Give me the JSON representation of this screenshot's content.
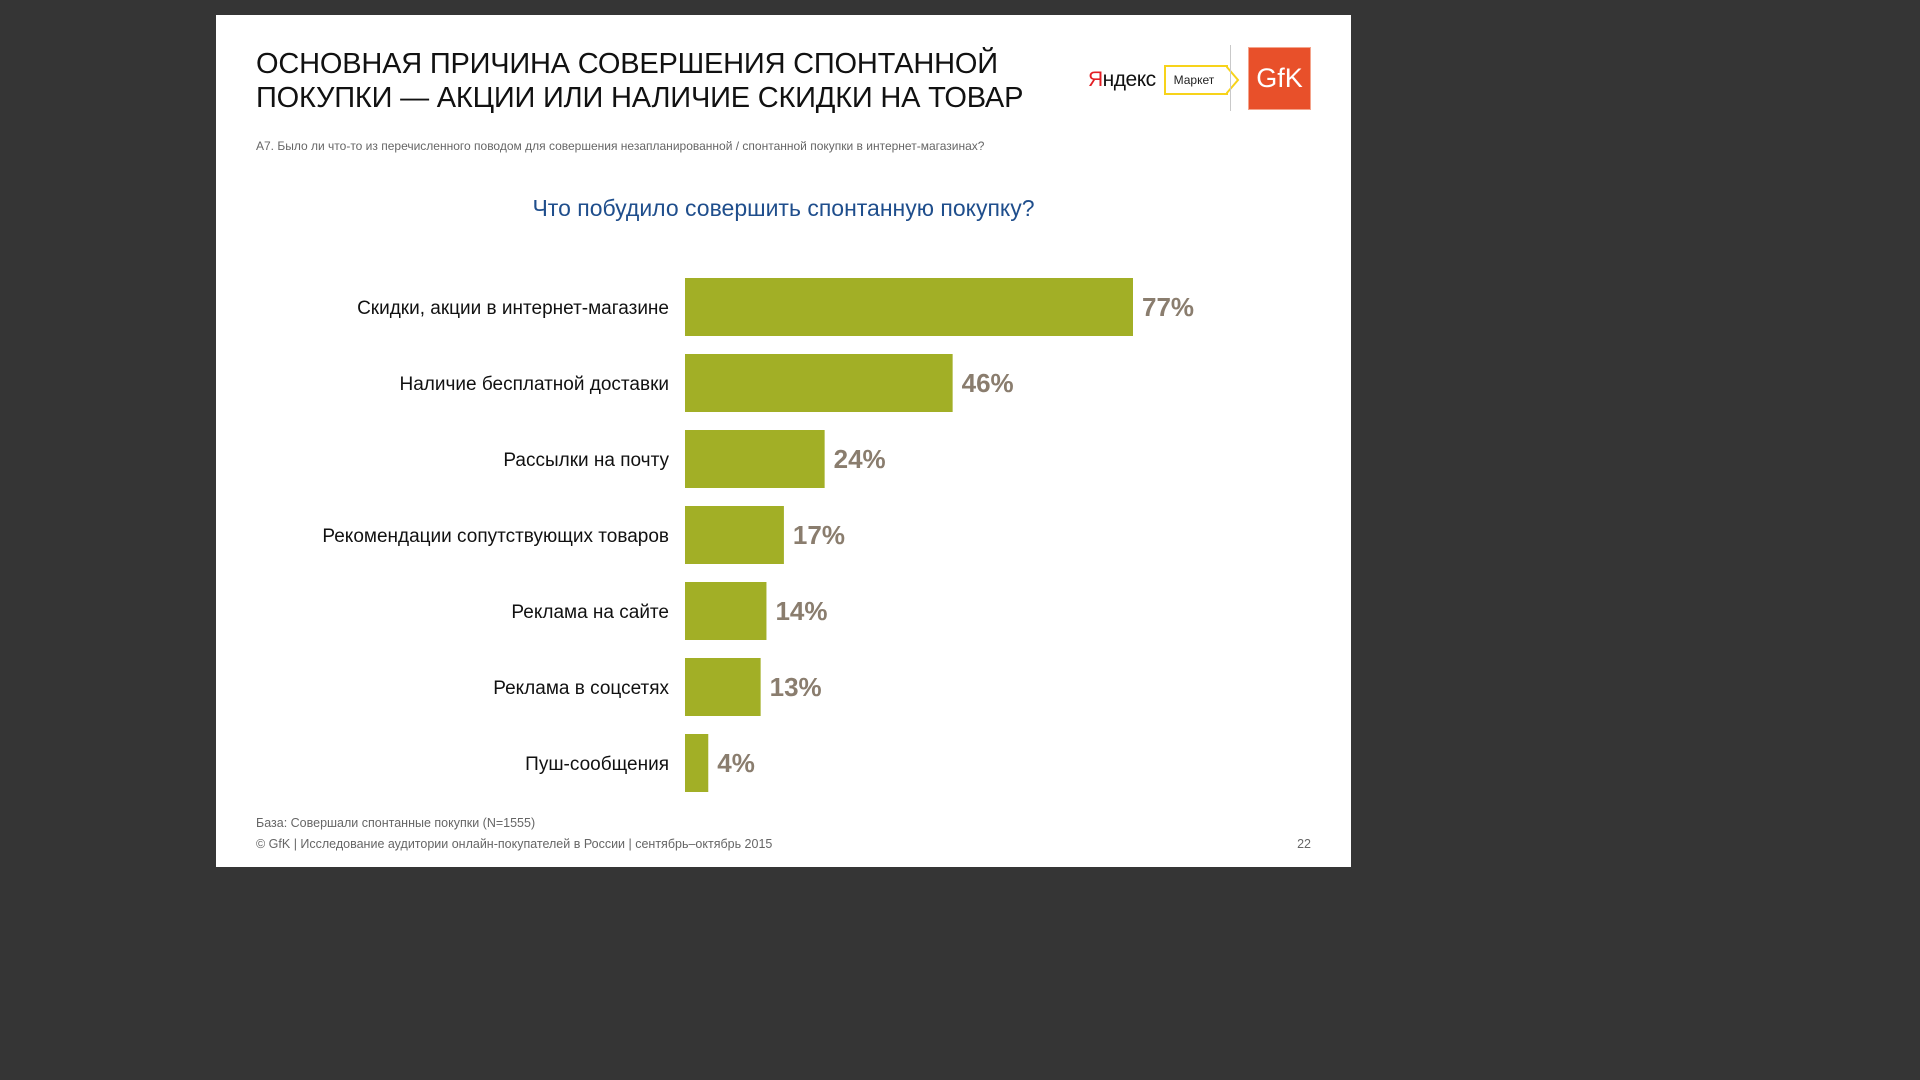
{
  "slide": {
    "title_lines": [
      "ОСНОВНАЯ ПРИЧИНА СОВЕРШЕНИЯ СПОНТАННОЙ",
      "ПОКУПКИ — АКЦИИ ИЛИ НАЛИЧИЕ СКИДКИ НА ТОВАР"
    ],
    "question": "А7. Было ли что-то из перечисленного поводом для совершения незапланированной / спонтанной покупки в интернет-магазинах?",
    "base_note": "База: Совершали спонтанные покупки (N=1555)",
    "footer": "© GfK | Исследование аудитории онлайн-покупателей в России | сентябрь–октябрь 2015",
    "page_number": "22"
  },
  "logos": {
    "yandex_first": "Я",
    "yandex_rest": "ндекс",
    "market": "Маркет",
    "gfk": "GfK",
    "yandex_red": "#e31e24",
    "market_yellow": "#f7d31a",
    "gfk_orange": "#e8502a"
  },
  "chart_data": {
    "type": "bar",
    "orientation": "horizontal",
    "title": "Что побудило совершить спонтанную покупку?",
    "categories": [
      "Скидки, акции в интернет-магазине",
      "Наличие бесплатной доставки",
      "Рассылки на почту",
      "Рекомендации сопутствующих товаров",
      "Реклама на сайте",
      "Реклама в соцсетях",
      "Пуш-сообщения"
    ],
    "values": [
      77,
      46,
      24,
      17,
      14,
      13,
      4
    ],
    "value_labels": [
      "77%",
      "46%",
      "24%",
      "17%",
      "14%",
      "13%",
      "4%"
    ],
    "unit": "%",
    "bar_color": "#a2af26",
    "label_color": "#8a7d6e",
    "grid": false,
    "legend": "none"
  }
}
